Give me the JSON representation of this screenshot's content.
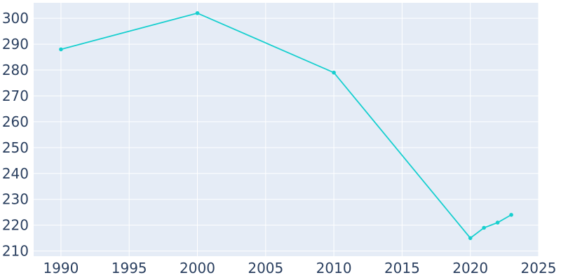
{
  "chart_data": {
    "type": "line",
    "title": "",
    "xlabel": "",
    "ylabel": "",
    "xlim": [
      1988,
      2025
    ],
    "ylim": [
      208,
      306
    ],
    "x_ticks": [
      1990,
      1995,
      2000,
      2005,
      2010,
      2015,
      2020,
      2025
    ],
    "y_ticks": [
      210,
      220,
      230,
      240,
      250,
      260,
      270,
      280,
      290,
      300
    ],
    "grid": true,
    "legend": "none",
    "colors": {
      "plot_background": "#e5ecf6",
      "grid": "#ffffff",
      "line": "#17cfcf",
      "tick_text": "#2a3f5f"
    },
    "series": [
      {
        "x": [
          1990,
          2000,
          2010,
          2020,
          2021,
          2022,
          2023
        ],
        "y": [
          288,
          302,
          279,
          215,
          219,
          221,
          224
        ]
      }
    ]
  }
}
